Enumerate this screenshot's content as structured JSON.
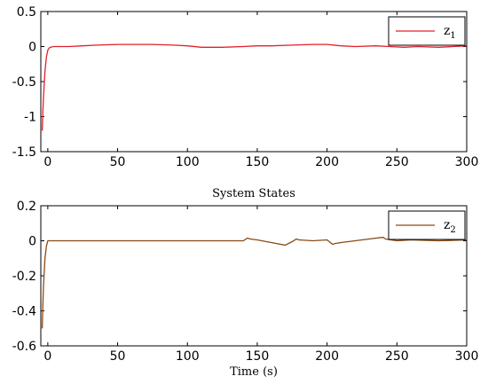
{
  "chart_data": [
    {
      "type": "line",
      "xlim": [
        -5,
        300
      ],
      "ylim": [
        -1.5,
        0.5
      ],
      "xticks": [
        0,
        50,
        100,
        150,
        200,
        250,
        300
      ],
      "yticks": [
        0.5,
        0,
        -0.5,
        -1,
        -1.5
      ],
      "ytick_labels": [
        "0.5",
        "0",
        "-0.5",
        "-1",
        "-1.5"
      ],
      "legend_position": "top-right",
      "grid": false,
      "series": [
        {
          "name": "z1",
          "color": "#e0202a",
          "x": [
            -4,
            -3.5,
            -3,
            -2,
            -1,
            0,
            1,
            2,
            4,
            8,
            15,
            25,
            35,
            50,
            60,
            75,
            90,
            100,
            110,
            125,
            140,
            150,
            160,
            175,
            190,
            200,
            210,
            220,
            235,
            245,
            255,
            265,
            280,
            290,
            300
          ],
          "y": [
            -1.2,
            -0.9,
            -0.7,
            -0.35,
            -0.15,
            -0.05,
            -0.02,
            -0.01,
            0,
            0,
            0,
            0.01,
            0.02,
            0.03,
            0.03,
            0.03,
            0.02,
            0.01,
            -0.01,
            -0.01,
            0,
            0.01,
            0.01,
            0.02,
            0.03,
            0.03,
            0.01,
            0,
            0.01,
            0,
            -0.01,
            0,
            -0.01,
            0,
            0.01
          ]
        }
      ]
    },
    {
      "type": "line",
      "title": "System States",
      "xlabel": "Time (s)",
      "xlim": [
        -5,
        300
      ],
      "ylim": [
        -0.6,
        0.2
      ],
      "xticks": [
        0,
        50,
        100,
        150,
        200,
        250,
        300
      ],
      "yticks": [
        0.2,
        0,
        -0.2,
        -0.4,
        -0.6
      ],
      "ytick_labels": [
        "0.2",
        "0",
        "-0.2",
        "-0.4",
        "-0.6"
      ],
      "legend_position": "top-right",
      "grid": false,
      "series": [
        {
          "name": "z2",
          "color": "#8a4a14",
          "x": [
            -4,
            -3.5,
            -3,
            -2,
            -1,
            0,
            2,
            5,
            20,
            50,
            100,
            140,
            143,
            145,
            150,
            160,
            170,
            175,
            178,
            180,
            190,
            200,
            204,
            206,
            210,
            220,
            230,
            240,
            242,
            250,
            260,
            280,
            300
          ],
          "y": [
            -0.5,
            -0.35,
            -0.25,
            -0.1,
            -0.03,
            0,
            0,
            0,
            0,
            0,
            0,
            0,
            0.015,
            0.01,
            0.005,
            -0.01,
            -0.025,
            -0.005,
            0.01,
            0.005,
            0,
            0.005,
            -0.02,
            -0.015,
            -0.01,
            0,
            0.01,
            0.02,
            0.01,
            0,
            0.005,
            0,
            0.005
          ]
        }
      ]
    }
  ]
}
